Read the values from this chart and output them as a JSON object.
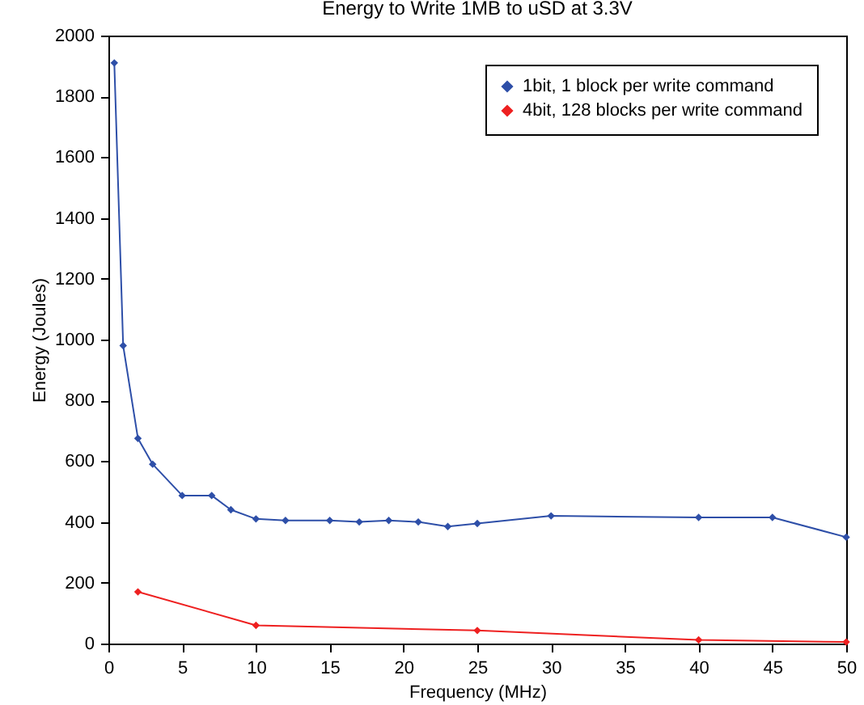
{
  "chart_data": {
    "type": "line",
    "title": "Energy to Write 1MB to uSD at 3.3V",
    "xlabel": "Frequency (MHz)",
    "ylabel": "Energy (Joules)",
    "series": [
      {
        "name": "1bit, 1 block per write command",
        "color": "#2e4fa8",
        "x": [
          0.4,
          1,
          2,
          3,
          5,
          7,
          8.3,
          10,
          12,
          15,
          17,
          19,
          21,
          23,
          25,
          30,
          40,
          45,
          50
        ],
        "values": [
          1910,
          980,
          675,
          590,
          487,
          487,
          440,
          410,
          405,
          405,
          400,
          405,
          400,
          385,
          395,
          420,
          415,
          415,
          350
        ]
      },
      {
        "name": "4bit, 128 blocks per write command",
        "color": "#ee2020",
        "x": [
          2,
          10,
          25,
          40,
          50
        ],
        "values": [
          170,
          60,
          43,
          12,
          5
        ]
      }
    ],
    "xlim": [
      0,
      50
    ],
    "xticks": [
      0,
      5,
      10,
      15,
      20,
      25,
      30,
      35,
      40,
      45,
      50
    ],
    "ylim": [
      0,
      2000
    ],
    "yticks": [
      0,
      200,
      400,
      600,
      800,
      1000,
      1200,
      1400,
      1600,
      1800,
      2000
    ],
    "grid": false,
    "legend": "top right",
    "marker": "diamond",
    "line_style": "solid"
  }
}
